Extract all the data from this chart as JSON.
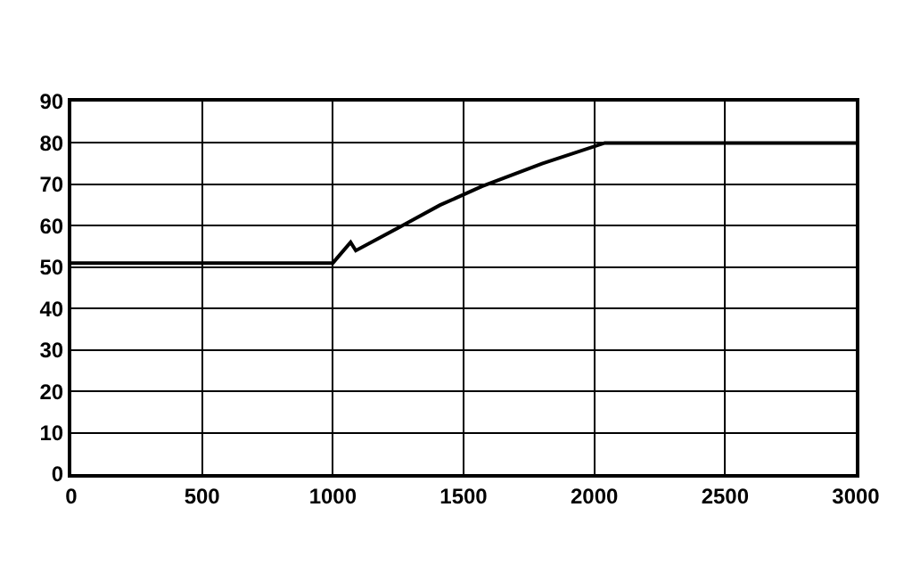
{
  "chart_data": {
    "type": "line",
    "x": [
      0,
      1000,
      1068,
      1088,
      1250,
      1410,
      1570,
      1800,
      2040,
      3000
    ],
    "series": [
      {
        "color": "#000000",
        "values": [
          51,
          51,
          56,
          54,
          59.5,
          65,
          69.5,
          75,
          80,
          80
        ]
      }
    ],
    "xlim": [
      0,
      3000
    ],
    "xticks": [
      0,
      500,
      1000,
      1500,
      2000,
      2500,
      3000
    ],
    "ylim": [
      0,
      90
    ],
    "yticks": [
      0,
      10,
      20,
      30,
      40,
      50,
      60,
      70,
      80,
      90
    ],
    "grid": true,
    "legend": false,
    "marker": "none",
    "line_style": "solid"
  }
}
